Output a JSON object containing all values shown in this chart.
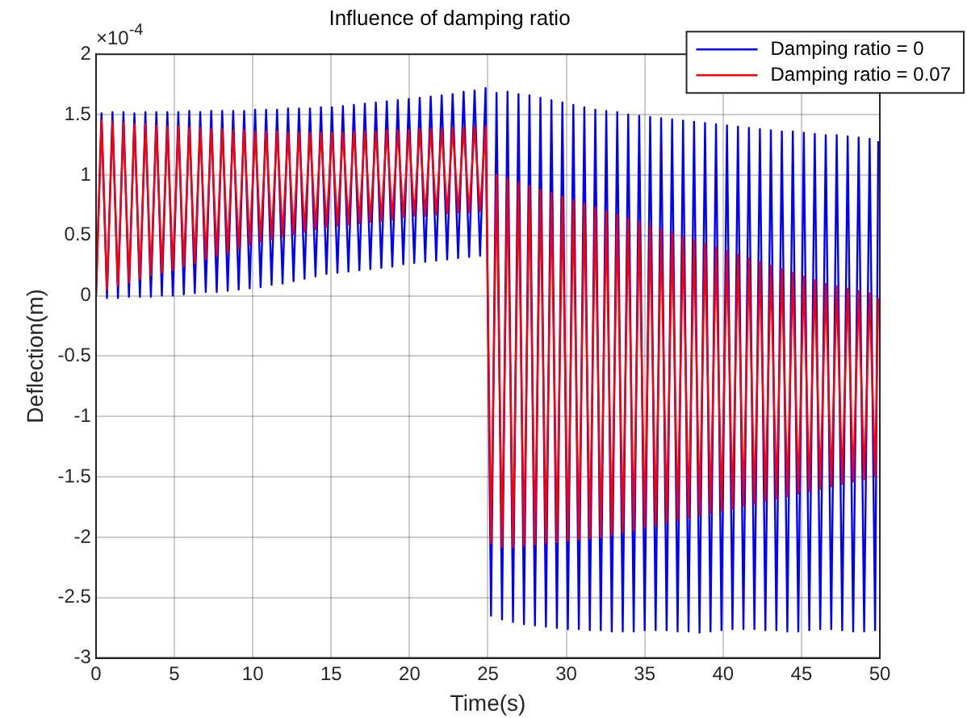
{
  "chart_data": {
    "type": "line",
    "title": "Influence of damping ratio",
    "xlabel": "Time(s)",
    "ylabel": "Deflection(m)",
    "annotations": [
      "×10$^{-4}$"
    ],
    "x": [
      0,
      0.35,
      0.7,
      1.05,
      1.4,
      1.75,
      2.1,
      2.45,
      2.8,
      3.15,
      3.5,
      3.85,
      4.2,
      4.55,
      4.9,
      5.25,
      5.6,
      5.95,
      6.3,
      6.65,
      7,
      7.35,
      7.7,
      8.05,
      8.4,
      8.75,
      9.1,
      9.45,
      9.8,
      10.15,
      10.5,
      10.85,
      11.2,
      11.55,
      11.9,
      12.25,
      12.6,
      12.95,
      13.3,
      13.65,
      14,
      14.35,
      14.7,
      15.05,
      15.4,
      15.75,
      16.1,
      16.45,
      16.8,
      17.15,
      17.5,
      17.85,
      18.2,
      18.55,
      18.9,
      19.25,
      19.6,
      19.95,
      20.3,
      20.65,
      21,
      21.35,
      21.7,
      22.05,
      22.4,
      22.75,
      23.1,
      23.45,
      23.8,
      24.15,
      24.5,
      24.85,
      25.2,
      25.55,
      25.9,
      26.25,
      26.6,
      26.95,
      27.3,
      27.65,
      28,
      28.35,
      28.7,
      29.05,
      29.4,
      29.75,
      30.1,
      30.45,
      30.8,
      31.15,
      31.5,
      31.85,
      32.2,
      32.55,
      32.9,
      33.25,
      33.6,
      33.95,
      34.3,
      34.65,
      35,
      35.35,
      35.7,
      36.05,
      36.4,
      36.75,
      37.1,
      37.45,
      37.8,
      38.15,
      38.5,
      38.85,
      39.2,
      39.55,
      39.9,
      40.25,
      40.6,
      40.95,
      41.3,
      41.65,
      42,
      42.35,
      42.7,
      43.05,
      43.4,
      43.75,
      44.1,
      44.45,
      44.8,
      45.15,
      45.5,
      45.85,
      46.2,
      46.55,
      46.9,
      47.25,
      47.6,
      47.95,
      48.3,
      48.65,
      49,
      49.35,
      49.7,
      49.9
    ],
    "series": [
      {
        "name": "Damping ratio = 0",
        "color": "#0000ff",
        "values": [
          0,
          1.51,
          -0.02,
          1.52,
          -0.02,
          1.52,
          -0.01,
          1.51,
          -0.01,
          1.52,
          -0.01,
          1.52,
          0,
          1.52,
          0,
          1.52,
          0.01,
          1.53,
          0.02,
          1.52,
          0.03,
          1.53,
          0.03,
          1.53,
          0.04,
          1.53,
          0.05,
          1.53,
          0.06,
          1.54,
          0.07,
          1.54,
          0.09,
          1.54,
          0.1,
          1.55,
          0.12,
          1.55,
          0.14,
          1.55,
          0.16,
          1.56,
          0.18,
          1.56,
          0.19,
          1.57,
          0.2,
          1.58,
          0.21,
          1.59,
          0.22,
          1.6,
          0.23,
          1.61,
          0.24,
          1.62,
          0.26,
          1.63,
          0.27,
          1.64,
          0.28,
          1.65,
          0.29,
          1.66,
          0.3,
          1.67,
          0.31,
          1.69,
          0.32,
          1.7,
          0.33,
          1.72,
          -2.65,
          1.68,
          -2.68,
          1.69,
          -2.7,
          1.67,
          -2.72,
          1.66,
          -2.73,
          1.64,
          -2.74,
          1.62,
          -2.75,
          1.6,
          -2.76,
          1.58,
          -2.76,
          1.56,
          -2.77,
          1.54,
          -2.77,
          1.53,
          -2.78,
          1.52,
          -2.78,
          1.5,
          -2.78,
          1.49,
          -2.77,
          1.48,
          -2.77,
          1.47,
          -2.77,
          1.46,
          -2.78,
          1.45,
          -2.78,
          1.44,
          -2.79,
          1.43,
          -2.78,
          1.42,
          -2.77,
          1.41,
          -2.76,
          1.4,
          -2.76,
          1.39,
          -2.76,
          1.38,
          -2.77,
          1.37,
          -2.77,
          1.36,
          -2.78,
          1.36,
          -2.78,
          1.35,
          -2.77,
          1.34,
          -2.76,
          1.33,
          -2.76,
          1.33,
          -2.77,
          1.32,
          -2.78,
          1.31,
          -2.78,
          1.3,
          -2.77,
          1.28
        ]
      },
      {
        "name": "Damping ratio = 0.07",
        "color": "#ff0000",
        "values": [
          0,
          1.45,
          0.05,
          1.44,
          0.08,
          1.43,
          0.11,
          1.42,
          0.14,
          1.42,
          0.17,
          1.41,
          0.19,
          1.4,
          0.21,
          1.4,
          0.24,
          1.39,
          0.27,
          1.39,
          0.3,
          1.38,
          0.33,
          1.38,
          0.36,
          1.37,
          0.39,
          1.37,
          0.42,
          1.36,
          0.45,
          1.36,
          0.47,
          1.36,
          0.49,
          1.35,
          0.51,
          1.35,
          0.53,
          1.35,
          0.55,
          1.35,
          0.57,
          1.35,
          0.58,
          1.35,
          0.59,
          1.36,
          0.6,
          1.36,
          0.61,
          1.36,
          0.62,
          1.37,
          0.63,
          1.37,
          0.65,
          1.37,
          0.66,
          1.38,
          0.66,
          1.38,
          0.67,
          1.38,
          0.68,
          1.39,
          0.69,
          1.39,
          0.69,
          1.4,
          0.7,
          1.4,
          -2.05,
          1.0,
          -2.08,
          0.97,
          -2.08,
          0.94,
          -2.07,
          0.91,
          -2.06,
          0.88,
          -2.05,
          0.85,
          -2.04,
          0.82,
          -2.03,
          0.79,
          -2.02,
          0.76,
          -2.01,
          0.73,
          -2.0,
          0.7,
          -1.98,
          0.67,
          -1.96,
          0.64,
          -1.94,
          0.61,
          -1.92,
          0.58,
          -1.9,
          0.55,
          -1.88,
          0.52,
          -1.86,
          0.49,
          -1.84,
          0.46,
          -1.82,
          0.43,
          -1.8,
          0.4,
          -1.78,
          0.37,
          -1.76,
          0.34,
          -1.74,
          0.31,
          -1.72,
          0.28,
          -1.7,
          0.25,
          -1.68,
          0.22,
          -1.66,
          0.19,
          -1.64,
          0.16,
          -1.62,
          0.13,
          -1.6,
          0.1,
          -1.58,
          0.08,
          -1.56,
          0.06,
          -1.54,
          0.04,
          -1.52,
          0.02,
          -1.5,
          -0.02
        ]
      }
    ],
    "xlim": [
      0,
      50
    ],
    "xticks": [
      0,
      5,
      10,
      15,
      20,
      25,
      30,
      35,
      40,
      45,
      50
    ],
    "ylim": [
      -3,
      2
    ],
    "yticks": [
      -3,
      -2.5,
      -2,
      -1.5,
      -1,
      -0.5,
      0,
      0.5,
      1,
      1.5,
      2
    ],
    "grid": true,
    "legend": "top right",
    "marker": "none",
    "line_style": "solid"
  }
}
